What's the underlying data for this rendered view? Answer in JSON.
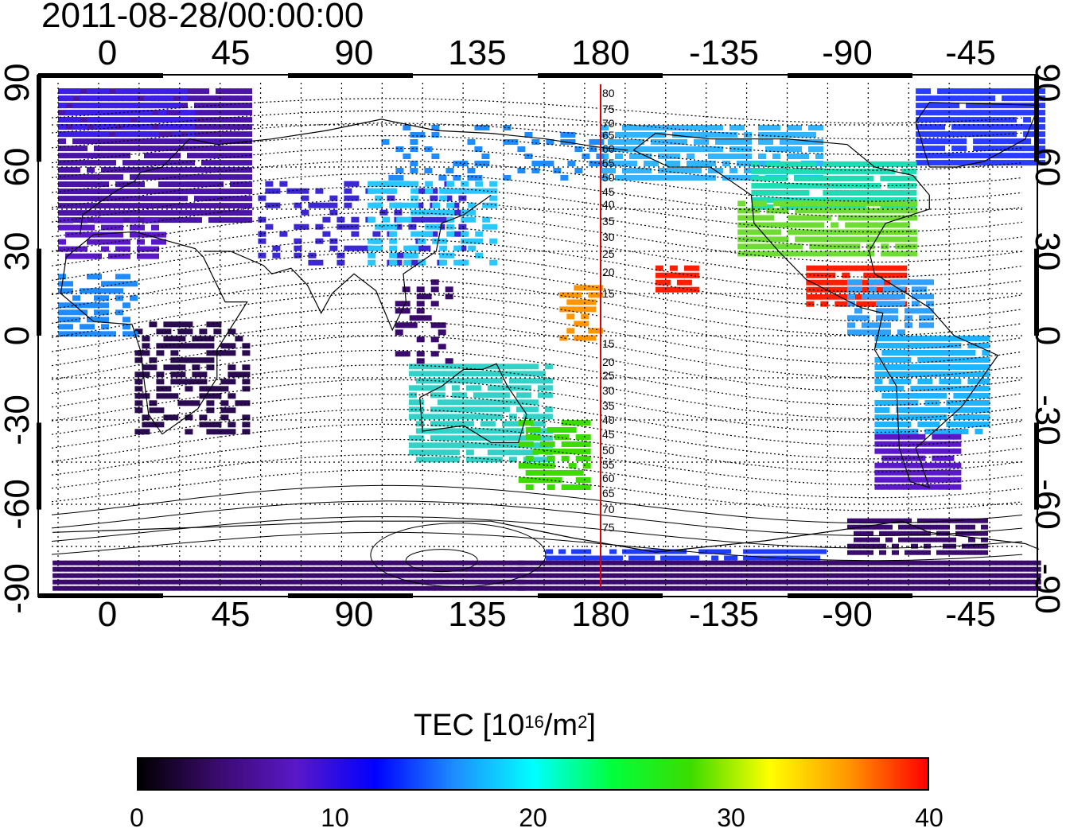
{
  "title": "2011-08-28/00:00:00",
  "x_ticks_top": [
    "0",
    "45",
    "90",
    "135",
    "180",
    "-135",
    "-90",
    "-45"
  ],
  "x_ticks_bottom": [
    "0",
    "45",
    "90",
    "135",
    "180",
    "-135",
    "-90",
    "-45"
  ],
  "y_ticks_left": [
    "90",
    "60",
    "30",
    "0",
    "-30",
    "-60",
    "-90"
  ],
  "y_ticks_right": [
    "90",
    "60",
    "30",
    "0",
    "-30",
    "-60",
    "-90"
  ],
  "contour_labels": [
    "80",
    "75",
    "70",
    "65",
    "60",
    "55",
    "50",
    "45",
    "40",
    "35",
    "30",
    "25",
    "20",
    "15",
    "15",
    "20",
    "25",
    "30",
    "35",
    "40",
    "45",
    "50",
    "55",
    "60",
    "65",
    "70",
    "75"
  ],
  "colorbar": {
    "title_prefix": "TEC  [10",
    "title_sup1": "16",
    "title_mid": "/m",
    "title_sup2": "2",
    "title_suffix": "]",
    "ticks": [
      "0",
      "10",
      "20",
      "30",
      "40"
    ],
    "stops": [
      "#000000",
      "#3a0a6e",
      "#5a18c8",
      "#0000ff",
      "#1e8cff",
      "#00ffff",
      "#00ff3c",
      "#3cdc00",
      "#ffff00",
      "#ff9600",
      "#ff0000"
    ]
  },
  "map": {
    "meridian_line_color": "#e00000",
    "ocean_color": "#ffffff",
    "coast_color": "#000000"
  }
}
